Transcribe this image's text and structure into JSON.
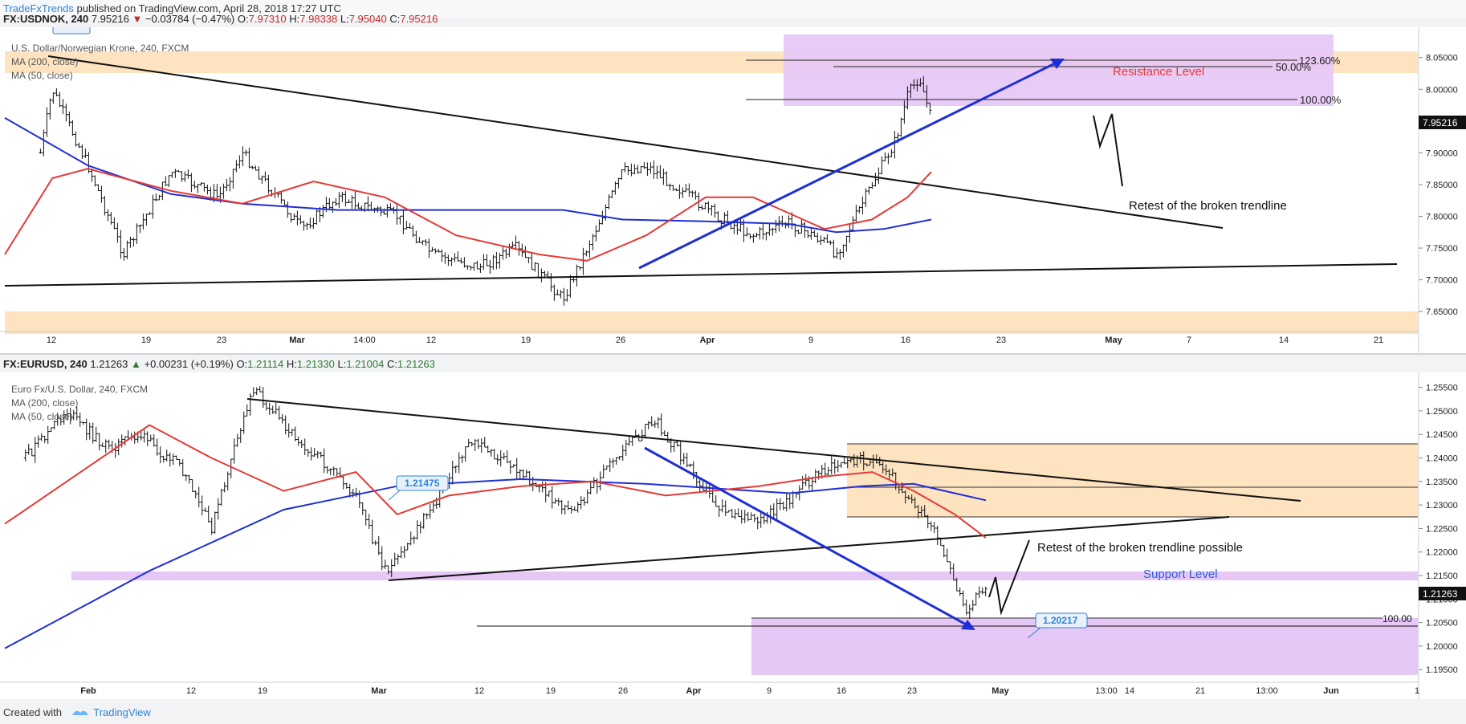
{
  "header": {
    "brand": "TradeFxTrends",
    "published": "published on TradingView.com, April 28, 2018 17:27 UTC",
    "symbol": "FX:USDNOK, 240",
    "last": "7.95216",
    "arrow": "▼",
    "change": "−0.03784 (−0.47%)",
    "o_label": "O:",
    "o": "7.97310",
    "h_label": "H:",
    "h": "7.98338",
    "l_label": "L:",
    "l": "7.95040",
    "c_label": "C:",
    "c": "7.95216"
  },
  "pane2_header": {
    "symbol": "FX:EURUSD, 240",
    "last": "1.21263",
    "arrow": "▲",
    "change": "+0.00231 (+0.19%)",
    "o_label": "O:",
    "o": "1.21114",
    "h_label": "H:",
    "h": "1.21330",
    "l_label": "L:",
    "l": "1.21004",
    "c_label": "C:",
    "c": "1.21263"
  },
  "footer": {
    "created_with": "Created with",
    "tradingview": "TradingView"
  },
  "colors": {
    "up": "#2e7d32",
    "down": "#c62828",
    "ma200": "#1f2fd6",
    "ma50": "#e53935",
    "zone_orange": "#fde3c0",
    "zone_purple": "#e6c8f7",
    "arrow_blue": "#1f2fd6"
  },
  "chart_data": [
    {
      "type": "line",
      "title": "U.S. Dollar/Norwegian Krone, 240, FXCM",
      "indicators": [
        "MA (200, close)",
        "MA (50, close)"
      ],
      "ylim": [
        7.63,
        8.085
      ],
      "y_ticks": [
        "8.05000",
        "8.00000",
        "7.95000",
        "7.90000",
        "7.85000",
        "7.80000",
        "7.75000",
        "7.70000",
        "7.65000"
      ],
      "last_price_label": "7.95216",
      "x_ticks": [
        "12",
        "19",
        "23",
        "Mar",
        "14:00",
        "12",
        "19",
        "26",
        "Apr",
        "9",
        "16",
        "23",
        "May",
        "7",
        "14",
        "21"
      ],
      "series": [
        {
          "name": "Price",
          "x": [
            "Feb 12",
            "Feb 13",
            "Feb 16",
            "Feb 19",
            "Feb 23",
            "Feb 27",
            "Mar 1",
            "Mar 6",
            "Mar 9",
            "Mar 14",
            "Mar 17",
            "Mar 21",
            "Mar 24",
            "Mar 28",
            "Apr 2",
            "Apr 4",
            "Apr 7",
            "Apr 10",
            "Apr 13",
            "Apr 16",
            "Apr 19",
            "Apr 20",
            "Apr 23",
            "Apr 25",
            "Apr 26",
            "Apr 27",
            "Apr 28"
          ],
          "values": [
            7.9,
            8.0,
            7.88,
            7.74,
            7.87,
            7.83,
            7.9,
            7.78,
            7.83,
            7.8,
            7.74,
            7.72,
            7.75,
            7.67,
            7.87,
            7.88,
            7.84,
            7.8,
            7.77,
            7.79,
            7.76,
            7.74,
            7.85,
            7.92,
            7.99,
            8.02,
            7.952
          ]
        },
        {
          "name": "MA (200, close)",
          "x": [
            "Feb 9",
            "Feb 16",
            "Feb 23",
            "Mar 1",
            "Mar 9",
            "Mar 19",
            "Mar 28",
            "Apr 2",
            "Apr 9",
            "Apr 16",
            "Apr 20",
            "Apr 24",
            "Apr 28"
          ],
          "values": [
            7.955,
            7.88,
            7.835,
            7.82,
            7.81,
            7.81,
            7.81,
            7.795,
            7.792,
            7.788,
            7.775,
            7.78,
            7.795
          ]
        },
        {
          "name": "MA (50, close)",
          "x": [
            "Feb 9",
            "Feb 13",
            "Feb 16",
            "Feb 23",
            "Mar 1",
            "Mar 7",
            "Mar 13",
            "Mar 19",
            "Mar 26",
            "Mar 30",
            "Apr 4",
            "Apr 9",
            "Apr 13",
            "Apr 19",
            "Apr 23",
            "Apr 26",
            "Apr 28"
          ],
          "values": [
            7.74,
            7.86,
            7.875,
            7.84,
            7.82,
            7.855,
            7.83,
            7.77,
            7.74,
            7.73,
            7.77,
            7.83,
            7.83,
            7.78,
            7.795,
            7.83,
            7.87
          ]
        }
      ],
      "annotations": {
        "resistance_label": "Resistance Level",
        "fib_123": "123.60%",
        "fib_50": "50.00%",
        "fib_100": "100.00%",
        "retest_label": "Retest of the broken trendline"
      }
    },
    {
      "type": "line",
      "title": "Euro Fx/U.S. Dollar, 240, FXCM",
      "indicators": [
        "MA (200, close)",
        "MA (50, close)"
      ],
      "ylim": [
        1.1935,
        1.2575
      ],
      "y_ticks": [
        "1.25500",
        "1.25000",
        "1.24500",
        "1.24000",
        "1.23500",
        "1.23000",
        "1.22500",
        "1.22000",
        "1.21500",
        "1.21000",
        "1.20500",
        "1.20000",
        "1.19500"
      ],
      "last_price_label": "1.21263",
      "x_ticks": [
        "Feb",
        "12",
        "19",
        "Mar",
        "12",
        "19",
        "26",
        "Apr",
        "9",
        "16",
        "23",
        "May",
        "13:00",
        "14",
        "21",
        "13:00",
        "Jun",
        "1"
      ],
      "series": [
        {
          "name": "Price",
          "x": [
            "Jan 25",
            "Jan 29",
            "Feb 2",
            "Feb 5",
            "Feb 9",
            "Feb 12",
            "Feb 16",
            "Feb 20",
            "Feb 26",
            "Mar 1",
            "Mar 6",
            "Mar 9",
            "Mar 14",
            "Mar 19",
            "Mar 23",
            "Mar 27",
            "Apr 2",
            "Apr 6",
            "Apr 12",
            "Apr 16",
            "Apr 19",
            "Apr 23",
            "Apr 26",
            "Apr 28"
          ],
          "values": [
            1.24,
            1.25,
            1.242,
            1.245,
            1.238,
            1.225,
            1.255,
            1.245,
            1.232,
            1.215,
            1.232,
            1.244,
            1.237,
            1.228,
            1.24,
            1.248,
            1.23,
            1.226,
            1.237,
            1.24,
            1.236,
            1.224,
            1.208,
            1.2126
          ]
        },
        {
          "name": "MA (200, close)",
          "x": [
            "Jan 23",
            "Feb 6",
            "Feb 19",
            "Mar 2",
            "Mar 14",
            "Mar 26",
            "Apr 9",
            "Apr 16",
            "Apr 21",
            "Apr 24",
            "Apr 28"
          ],
          "values": [
            1.1995,
            1.216,
            1.229,
            1.234,
            1.2355,
            1.2345,
            1.2325,
            1.234,
            1.2345,
            1.233,
            1.231
          ]
        },
        {
          "name": "MA (50, close)",
          "x": [
            "Jan 23",
            "Jan 31",
            "Feb 6",
            "Feb 12",
            "Feb 19",
            "Feb 26",
            "Mar 2",
            "Mar 7",
            "Mar 14",
            "Mar 21",
            "Mar 28",
            "Apr 6",
            "Apr 12",
            "Apr 17",
            "Apr 21",
            "Apr 25",
            "Apr 28"
          ],
          "values": [
            1.226,
            1.238,
            1.247,
            1.24,
            1.233,
            1.237,
            1.228,
            1.232,
            1.234,
            1.235,
            1.232,
            1.234,
            1.236,
            1.237,
            1.233,
            1.228,
            1.223
          ]
        }
      ],
      "annotations": {
        "low_label": "1.21475",
        "target_label": "1.20217",
        "fib_100": "100.00",
        "retest_label": "Retest of the broken trendline possible",
        "support_label": "Support Level"
      }
    }
  ]
}
